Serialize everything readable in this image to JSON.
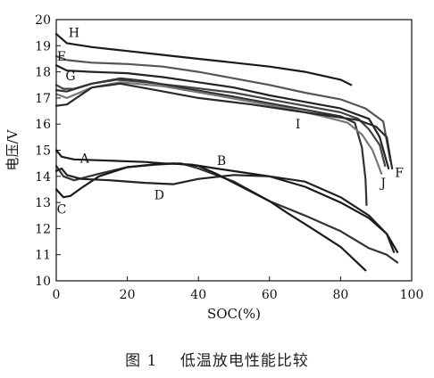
{
  "chart_data": {
    "type": "line",
    "xlabel": "SOC(%)",
    "ylabel": "电压/V",
    "xlim": [
      0,
      100
    ],
    "ylim": [
      10,
      20
    ],
    "xticks": [
      0,
      20,
      40,
      60,
      80,
      100
    ],
    "yticks": [
      10,
      11,
      12,
      13,
      14,
      15,
      16,
      17,
      18,
      19,
      20
    ],
    "grid": false,
    "series": [
      {
        "name": "H",
        "label_at": [
          5,
          19.5
        ],
        "color": "#1a1a1a",
        "points": [
          [
            0,
            19.45
          ],
          [
            3,
            19.1
          ],
          [
            10,
            18.95
          ],
          [
            20,
            18.8
          ],
          [
            30,
            18.65
          ],
          [
            40,
            18.5
          ],
          [
            50,
            18.35
          ],
          [
            60,
            18.2
          ],
          [
            70,
            18.0
          ],
          [
            80,
            17.7
          ],
          [
            83,
            17.5
          ]
        ]
      },
      {
        "name": "E",
        "label_at": [
          1.5,
          18.6
        ],
        "color": "#555555",
        "points": [
          [
            0,
            18.6
          ],
          [
            3,
            18.45
          ],
          [
            10,
            18.35
          ],
          [
            20,
            18.3
          ],
          [
            30,
            18.2
          ],
          [
            40,
            18.0
          ],
          [
            50,
            17.75
          ],
          [
            60,
            17.5
          ],
          [
            70,
            17.2
          ],
          [
            80,
            16.95
          ],
          [
            87,
            16.6
          ],
          [
            92,
            16.1
          ],
          [
            94,
            14.6
          ]
        ]
      },
      {
        "name": "",
        "label_at": null,
        "color": "#222222",
        "points": [
          [
            0,
            18.25
          ],
          [
            3,
            18.05
          ],
          [
            10,
            18.0
          ],
          [
            20,
            17.95
          ],
          [
            30,
            17.8
          ],
          [
            40,
            17.6
          ],
          [
            50,
            17.4
          ],
          [
            60,
            17.1
          ],
          [
            70,
            16.85
          ],
          [
            80,
            16.6
          ],
          [
            88,
            16.2
          ],
          [
            91,
            15.5
          ],
          [
            93.5,
            14.3
          ]
        ]
      },
      {
        "name": "G",
        "label_at": [
          4,
          17.85
        ],
        "color": "#444444",
        "points": [
          [
            0,
            17.5
          ],
          [
            2,
            17.35
          ],
          [
            5,
            17.35
          ],
          [
            10,
            17.55
          ],
          [
            17,
            17.7
          ],
          [
            25,
            17.6
          ],
          [
            35,
            17.45
          ],
          [
            50,
            17.2
          ],
          [
            60,
            16.95
          ],
          [
            70,
            16.7
          ],
          [
            80,
            16.45
          ],
          [
            85,
            16.2
          ],
          [
            88,
            15.8
          ],
          [
            91,
            15.2
          ],
          [
            92.5,
            14.4
          ]
        ]
      },
      {
        "name": "I",
        "label_at": [
          68,
          16.0
        ],
        "color": "#333333",
        "points": [
          [
            0,
            17.3
          ],
          [
            3,
            17.25
          ],
          [
            10,
            17.55
          ],
          [
            18,
            17.75
          ],
          [
            25,
            17.65
          ],
          [
            35,
            17.4
          ],
          [
            50,
            17.05
          ],
          [
            60,
            16.8
          ],
          [
            70,
            16.55
          ],
          [
            80,
            16.3
          ],
          [
            84,
            16.05
          ],
          [
            86,
            15.1
          ],
          [
            87,
            13.9
          ],
          [
            87.3,
            12.9
          ]
        ]
      },
      {
        "name": "J",
        "label_at": [
          92,
          13.75
        ],
        "color": "#777777",
        "points": [
          [
            0,
            17.15
          ],
          [
            3,
            17.0
          ],
          [
            10,
            17.4
          ],
          [
            18,
            17.6
          ],
          [
            30,
            17.45
          ],
          [
            45,
            17.1
          ],
          [
            55,
            16.85
          ],
          [
            65,
            16.6
          ],
          [
            75,
            16.3
          ],
          [
            82,
            16.05
          ],
          [
            86,
            15.6
          ],
          [
            89,
            15.0
          ],
          [
            91.5,
            14.1
          ]
        ]
      },
      {
        "name": "F",
        "label_at": [
          96.5,
          14.15
        ],
        "color": "#2a2a2a",
        "points": [
          [
            0,
            16.7
          ],
          [
            3,
            16.75
          ],
          [
            10,
            17.4
          ],
          [
            18,
            17.55
          ],
          [
            28,
            17.3
          ],
          [
            40,
            17.0
          ],
          [
            55,
            16.75
          ],
          [
            65,
            16.55
          ],
          [
            75,
            16.35
          ],
          [
            85,
            16.15
          ],
          [
            90,
            15.9
          ],
          [
            93,
            15.5
          ],
          [
            94.5,
            14.3
          ]
        ]
      },
      {
        "name": "A",
        "label_at": [
          8,
          14.7
        ],
        "color": "#1a1a1a",
        "points": [
          [
            0,
            15.0
          ],
          [
            1.5,
            14.75
          ],
          [
            5,
            14.65
          ],
          [
            15,
            14.6
          ],
          [
            25,
            14.55
          ],
          [
            30,
            14.5
          ],
          [
            38,
            14.45
          ],
          [
            45,
            14.3
          ],
          [
            55,
            14.1
          ],
          [
            60,
            14.0
          ],
          [
            70,
            13.6
          ],
          [
            80,
            13.0
          ],
          [
            88,
            12.4
          ],
          [
            93,
            11.8
          ],
          [
            96,
            11.1
          ]
        ]
      },
      {
        "name": "B",
        "label_at": [
          46.5,
          14.6
        ],
        "color": "#333333",
        "points": [
          [
            0,
            14.4
          ],
          [
            2,
            14.0
          ],
          [
            5,
            13.85
          ],
          [
            12,
            14.1
          ],
          [
            20,
            14.35
          ],
          [
            28,
            14.45
          ],
          [
            35,
            14.5
          ],
          [
            40,
            14.3
          ],
          [
            50,
            13.8
          ],
          [
            60,
            13.05
          ],
          [
            70,
            12.5
          ],
          [
            80,
            11.9
          ],
          [
            88,
            11.25
          ],
          [
            93,
            11.0
          ],
          [
            96,
            10.7
          ]
        ]
      },
      {
        "name": "C",
        "label_at": [
          1.5,
          12.75
        ],
        "color": "#1a1a1a",
        "points": [
          [
            0,
            13.5
          ],
          [
            2,
            13.2
          ],
          [
            4,
            13.25
          ],
          [
            7,
            13.55
          ],
          [
            12,
            14.0
          ],
          [
            20,
            14.35
          ],
          [
            27,
            14.45
          ],
          [
            33,
            14.5
          ],
          [
            40,
            14.4
          ],
          [
            45,
            14.1
          ],
          [
            55,
            13.4
          ],
          [
            60,
            13.05
          ],
          [
            65,
            12.6
          ],
          [
            72,
            12.0
          ],
          [
            80,
            11.3
          ],
          [
            87,
            10.4
          ]
        ]
      },
      {
        "name": "D",
        "label_at": [
          29,
          13.3
        ],
        "color": "#222222",
        "points": [
          [
            0,
            14.2
          ],
          [
            1.5,
            14.3
          ],
          [
            3,
            14.05
          ],
          [
            7,
            13.9
          ],
          [
            15,
            13.85
          ],
          [
            25,
            13.75
          ],
          [
            33,
            13.7
          ],
          [
            40,
            13.9
          ],
          [
            50,
            14.05
          ],
          [
            60,
            14.0
          ],
          [
            70,
            13.8
          ],
          [
            80,
            13.2
          ],
          [
            88,
            12.5
          ],
          [
            93,
            11.8
          ],
          [
            95,
            11.1
          ]
        ]
      }
    ]
  },
  "caption": "图 1    低温放电性能比较"
}
